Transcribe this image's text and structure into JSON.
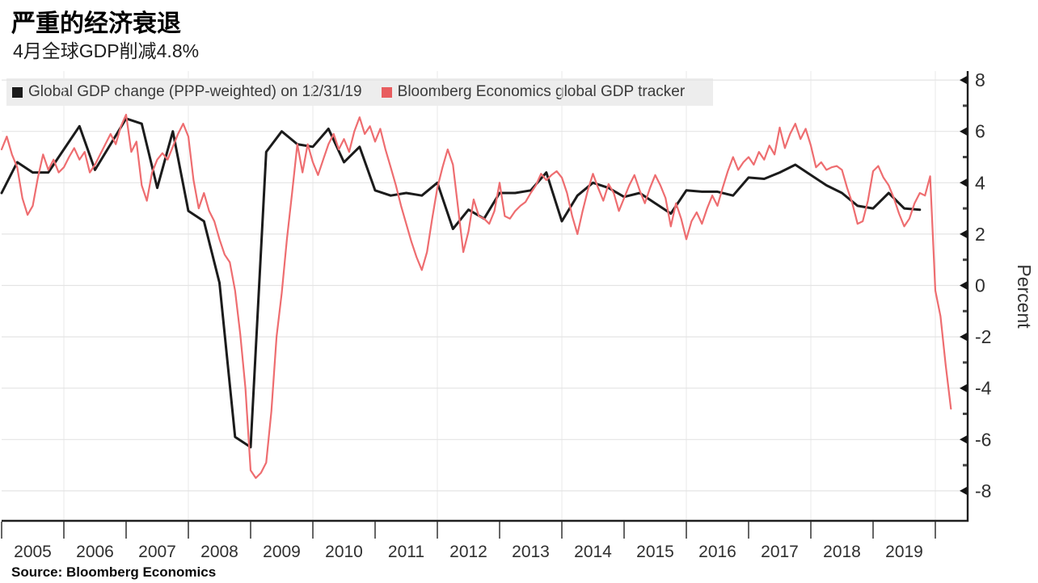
{
  "header": {
    "title": "严重的经济衰退",
    "subtitle": "4月全球GDP削减4.8%"
  },
  "source_note": "Source: Bloomberg Economics",
  "legend": [
    {
      "label": "Global GDP change (PPP-weighted) on 12/31/19",
      "color": "#1b1b1b"
    },
    {
      "label": "Bloomberg Economics global GDP tracker",
      "color": "#e85d5f"
    }
  ],
  "chart_data": {
    "type": "line",
    "title": "严重的经济衰退",
    "subtitle": "4月全球GDP削减4.8%",
    "xlabel": "",
    "ylabel": "Percent",
    "ylim": [
      -9.2,
      8.4
    ],
    "xlim": [
      2005,
      2020.52
    ],
    "yticks": [
      8,
      6,
      4,
      2,
      0,
      -2,
      -4,
      -6,
      -8
    ],
    "y_minor_ticks": [
      7,
      5,
      3,
      1,
      -1,
      -3,
      -5,
      -7
    ],
    "x_year_labels": [
      "2005",
      "2006",
      "2007",
      "2008",
      "2009",
      "2010",
      "2011",
      "2012",
      "2013",
      "2014",
      "2015",
      "2016",
      "2017",
      "2018",
      "2019"
    ],
    "grid": "light horizontal lines at every 2 units; faint vertical lines at even-year boundaries",
    "legend_position": "top-left",
    "axis_side": "right",
    "series": [
      {
        "name": "Global GDP change (PPP-weighted) on 12/31/19",
        "color": "#1b1b1b",
        "frequency": "quarterly",
        "x_start": 2005.0,
        "x_step": 0.25,
        "values": [
          3.6,
          4.8,
          4.4,
          4.4,
          5.3,
          6.2,
          4.5,
          5.5,
          6.5,
          6.3,
          3.8,
          6.0,
          2.9,
          2.5,
          0.1,
          -5.9,
          -6.3,
          5.2,
          6.0,
          5.5,
          5.4,
          6.1,
          4.8,
          5.4,
          3.7,
          3.5,
          3.6,
          3.5,
          4.0,
          2.2,
          2.95,
          2.6,
          3.6,
          3.6,
          3.7,
          4.4,
          2.5,
          3.5,
          4.0,
          3.8,
          3.45,
          3.6,
          3.2,
          2.8,
          3.7,
          3.65,
          3.65,
          3.5,
          4.2,
          4.15,
          4.4,
          4.7,
          4.3,
          3.9,
          3.6,
          3.1,
          3.0,
          3.6,
          3.0,
          2.95
        ]
      },
      {
        "name": "Bloomberg Economics global GDP tracker",
        "color": "#ee6d70",
        "frequency": "monthly",
        "x_start": 2005.0,
        "x_step": 0.08333,
        "values": [
          5.3,
          5.8,
          5.1,
          4.6,
          3.4,
          2.75,
          3.1,
          4.2,
          5.1,
          4.5,
          4.9,
          4.4,
          4.6,
          5.0,
          5.35,
          4.9,
          5.2,
          4.4,
          4.7,
          5.1,
          5.5,
          5.9,
          5.5,
          6.2,
          6.65,
          5.2,
          5.6,
          3.9,
          3.3,
          4.4,
          4.9,
          5.15,
          4.9,
          5.4,
          5.9,
          6.3,
          5.8,
          4.1,
          3.0,
          3.6,
          2.9,
          2.5,
          1.8,
          1.2,
          0.9,
          -0.2,
          -1.9,
          -4.0,
          -7.2,
          -7.5,
          -7.3,
          -6.9,
          -4.9,
          -2.0,
          -0.3,
          1.8,
          3.6,
          5.5,
          4.4,
          5.5,
          4.8,
          4.3,
          4.9,
          5.5,
          5.9,
          5.3,
          5.7,
          5.2,
          6.0,
          6.55,
          5.9,
          6.2,
          5.6,
          6.1,
          5.3,
          4.6,
          3.9,
          3.1,
          2.4,
          1.7,
          1.1,
          0.6,
          1.3,
          2.6,
          3.8,
          4.6,
          5.3,
          4.7,
          3.0,
          1.3,
          2.1,
          3.35,
          2.7,
          2.6,
          2.4,
          2.9,
          4.0,
          2.7,
          2.6,
          2.9,
          3.1,
          3.25,
          3.6,
          3.9,
          4.35,
          4.1,
          4.3,
          4.45,
          4.2,
          3.6,
          2.7,
          2.0,
          2.9,
          3.7,
          4.35,
          3.8,
          3.3,
          3.95,
          3.6,
          2.9,
          3.4,
          3.9,
          4.3,
          3.7,
          3.2,
          3.8,
          4.3,
          3.9,
          3.4,
          2.3,
          3.2,
          2.6,
          1.8,
          2.5,
          2.85,
          2.4,
          3.0,
          3.5,
          3.1,
          3.8,
          4.45,
          5.0,
          4.5,
          4.8,
          5.0,
          4.7,
          5.2,
          4.9,
          5.45,
          5.1,
          6.15,
          5.35,
          5.9,
          6.3,
          5.7,
          6.1,
          5.45,
          4.6,
          4.8,
          4.5,
          4.6,
          4.65,
          4.5,
          3.8,
          3.2,
          2.4,
          2.5,
          3.3,
          4.45,
          4.65,
          4.2,
          3.9,
          3.4,
          2.8,
          2.3,
          2.6,
          3.2,
          3.6,
          3.5,
          4.25,
          -0.2,
          -1.2,
          -3.1,
          -4.8
        ]
      }
    ]
  }
}
